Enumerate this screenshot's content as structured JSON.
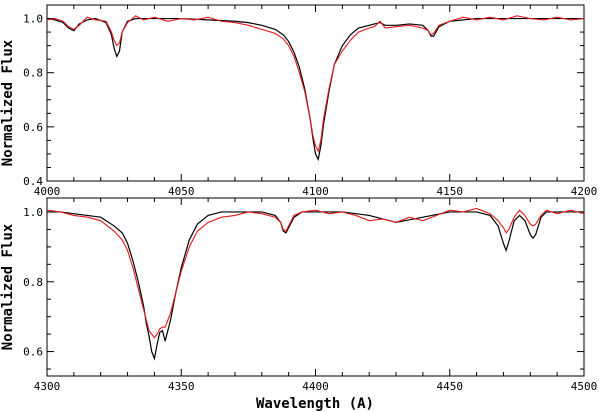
{
  "chart_data": [
    {
      "type": "line",
      "title": "",
      "xlabel": "",
      "ylabel": "Normalized Flux",
      "xlim": [
        4000,
        4200
      ],
      "ylim": [
        0.4,
        1.05
      ],
      "xticks": [
        4000,
        4050,
        4100,
        4150,
        4200
      ],
      "yticks": [
        0.4,
        0.6,
        0.8,
        1.0
      ],
      "xtick_labels": [
        "4000",
        "4050",
        "4100",
        "4150",
        "4200"
      ],
      "ytick_labels": [
        "0.4",
        "0.6",
        "0.8",
        "1.0"
      ],
      "grid": false,
      "series": [
        {
          "color": "#000000",
          "x": [
            4000,
            4003,
            4006,
            4008,
            4010,
            4012,
            4015,
            4018,
            4022,
            4024,
            4025,
            4026,
            4027,
            4028,
            4030,
            4033,
            4040,
            4050,
            4060,
            4070,
            4075,
            4080,
            4085,
            4088,
            4090,
            4092,
            4094,
            4096,
            4098,
            4099,
            4100,
            4101,
            4102,
            4103,
            4105,
            4107,
            4110,
            4113,
            4116,
            4120,
            4122,
            4124,
            4126,
            4130,
            4135,
            4140,
            4142,
            4143,
            4144,
            4146,
            4150,
            4160,
            4170,
            4180,
            4190,
            4200
          ],
          "y": [
            1.0,
            0.995,
            0.985,
            0.965,
            0.955,
            0.98,
            0.995,
            1.0,
            0.985,
            0.94,
            0.89,
            0.86,
            0.88,
            0.95,
            0.99,
            1.0,
            1.0,
            1.0,
            0.995,
            0.99,
            0.985,
            0.975,
            0.96,
            0.94,
            0.915,
            0.875,
            0.82,
            0.74,
            0.63,
            0.56,
            0.5,
            0.48,
            0.53,
            0.61,
            0.73,
            0.83,
            0.9,
            0.94,
            0.965,
            0.975,
            0.98,
            0.985,
            0.975,
            0.975,
            0.98,
            0.975,
            0.955,
            0.935,
            0.935,
            0.97,
            0.99,
            1.0,
            1.0,
            1.0,
            1.0,
            1.0
          ]
        },
        {
          "color": "#e41a1c",
          "x": [
            4000,
            4003,
            4006,
            4008,
            4010,
            4012,
            4015,
            4018,
            4022,
            4024,
            4025,
            4026,
            4027,
            4028,
            4030,
            4033,
            4036,
            4040,
            4045,
            4050,
            4055,
            4060,
            4065,
            4070,
            4075,
            4080,
            4085,
            4088,
            4090,
            4092,
            4094,
            4096,
            4098,
            4099,
            4100,
            4101,
            4102,
            4103,
            4105,
            4107,
            4110,
            4113,
            4116,
            4120,
            4122,
            4124,
            4126,
            4130,
            4135,
            4140,
            4142,
            4143,
            4144,
            4146,
            4150,
            4155,
            4160,
            4165,
            4170,
            4175,
            4180,
            4185,
            4190,
            4195,
            4200
          ],
          "y": [
            0.995,
            1.0,
            0.99,
            0.97,
            0.96,
            0.975,
            1.005,
            0.995,
            0.99,
            0.95,
            0.92,
            0.9,
            0.91,
            0.95,
            0.985,
            1.01,
            0.995,
            1.005,
            0.99,
            1.0,
            0.995,
            1.005,
            0.99,
            0.985,
            0.975,
            0.96,
            0.945,
            0.925,
            0.9,
            0.86,
            0.8,
            0.73,
            0.63,
            0.57,
            0.53,
            0.51,
            0.55,
            0.63,
            0.74,
            0.83,
            0.88,
            0.92,
            0.95,
            0.965,
            0.97,
            0.99,
            0.965,
            0.97,
            0.975,
            0.965,
            0.955,
            0.94,
            0.945,
            0.975,
            0.99,
            1.005,
            0.995,
            1.005,
            0.995,
            1.01,
            1.0,
            0.995,
            1.005,
            0.995,
            1.0
          ]
        }
      ]
    },
    {
      "type": "line",
      "title": "",
      "xlabel": "Wavelength (A)",
      "ylabel": "Normalized Flux",
      "xlim": [
        4300,
        4500
      ],
      "ylim": [
        0.53,
        1.04
      ],
      "xticks": [
        4300,
        4350,
        4400,
        4450,
        4500
      ],
      "yticks": [
        0.6,
        0.8,
        1.0
      ],
      "xtick_labels": [
        "4300",
        "4350",
        "4400",
        "4450",
        "4500"
      ],
      "ytick_labels": [
        "0.6",
        "0.8",
        "1.0"
      ],
      "grid": false,
      "series": [
        {
          "color": "#000000",
          "x": [
            4300,
            4305,
            4310,
            4315,
            4320,
            4325,
            4328,
            4330,
            4332,
            4334,
            4336,
            4337,
            4338,
            4339,
            4340,
            4341,
            4342,
            4343,
            4344,
            4346,
            4348,
            4350,
            4353,
            4356,
            4360,
            4365,
            4370,
            4380,
            4385,
            4387,
            4388,
            4389,
            4390,
            4392,
            4395,
            4400,
            4410,
            4420,
            4430,
            4440,
            4450,
            4460,
            4465,
            4468,
            4470,
            4471,
            4472,
            4474,
            4476,
            4478,
            4480,
            4481,
            4482,
            4484,
            4486,
            4490,
            4495,
            4500
          ],
          "y": [
            1.0,
            1.0,
            0.995,
            0.99,
            0.985,
            0.96,
            0.94,
            0.91,
            0.86,
            0.8,
            0.73,
            0.68,
            0.645,
            0.6,
            0.58,
            0.62,
            0.655,
            0.66,
            0.63,
            0.69,
            0.77,
            0.84,
            0.92,
            0.965,
            0.99,
            1.0,
            1.0,
            1.0,
            0.99,
            0.97,
            0.945,
            0.94,
            0.955,
            0.985,
            1.0,
            1.0,
            1.0,
            0.99,
            0.97,
            0.985,
            1.0,
            1.0,
            0.99,
            0.96,
            0.91,
            0.89,
            0.915,
            0.975,
            0.99,
            0.975,
            0.935,
            0.925,
            0.935,
            0.985,
            1.0,
            1.0,
            1.0,
            1.0
          ]
        },
        {
          "color": "#e41a1c",
          "x": [
            4300,
            4305,
            4310,
            4315,
            4320,
            4325,
            4328,
            4330,
            4332,
            4334,
            4336,
            4337,
            4338,
            4339,
            4340,
            4341,
            4342,
            4343,
            4344,
            4346,
            4348,
            4350,
            4353,
            4356,
            4360,
            4365,
            4370,
            4375,
            4380,
            4385,
            4387,
            4388,
            4389,
            4390,
            4392,
            4395,
            4400,
            4405,
            4410,
            4415,
            4420,
            4425,
            4430,
            4435,
            4440,
            4445,
            4450,
            4455,
            4460,
            4465,
            4468,
            4470,
            4471,
            4472,
            4474,
            4476,
            4478,
            4480,
            4481,
            4482,
            4484,
            4486,
            4490,
            4495,
            4500
          ],
          "y": [
            1.005,
            1.0,
            0.99,
            0.985,
            0.975,
            0.945,
            0.92,
            0.89,
            0.84,
            0.78,
            0.72,
            0.69,
            0.66,
            0.65,
            0.64,
            0.65,
            0.665,
            0.67,
            0.67,
            0.71,
            0.77,
            0.83,
            0.9,
            0.945,
            0.97,
            0.985,
            0.99,
            1.0,
            0.995,
            0.985,
            0.97,
            0.95,
            0.945,
            0.96,
            0.99,
            1.0,
            1.005,
            0.995,
            1.0,
            0.99,
            0.975,
            0.98,
            0.97,
            0.985,
            0.975,
            0.99,
            1.005,
            1.0,
            1.01,
            0.995,
            0.975,
            0.955,
            0.94,
            0.95,
            0.985,
            1.005,
            0.99,
            0.965,
            0.96,
            0.965,
            0.99,
            1.005,
            0.995,
            1.005,
            0.995
          ]
        }
      ]
    }
  ]
}
